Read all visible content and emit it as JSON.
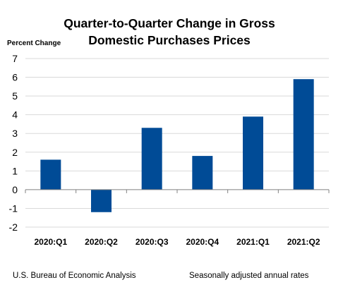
{
  "chart_data": {
    "type": "bar",
    "title_lines": [
      "Quarter-to-Quarter Change in Gross",
      "Domestic Purchases Prices"
    ],
    "ylabel": "Percent Change",
    "xlabel": "",
    "categories": [
      "2020:Q1",
      "2020:Q2",
      "2020:Q3",
      "2020:Q4",
      "2021:Q1",
      "2021:Q2"
    ],
    "values": [
      1.6,
      -1.2,
      3.3,
      1.8,
      3.9,
      5.9
    ],
    "ylim": [
      -2,
      7
    ],
    "yticks": [
      "-2",
      "-1",
      "0",
      "1",
      "2",
      "3",
      "4",
      "5",
      "6",
      "7"
    ],
    "grid": true,
    "bar_color": "#004b96",
    "source": "U.S. Bureau of Economic Analysis",
    "footnote": "Seasonally adjusted annual rates"
  }
}
